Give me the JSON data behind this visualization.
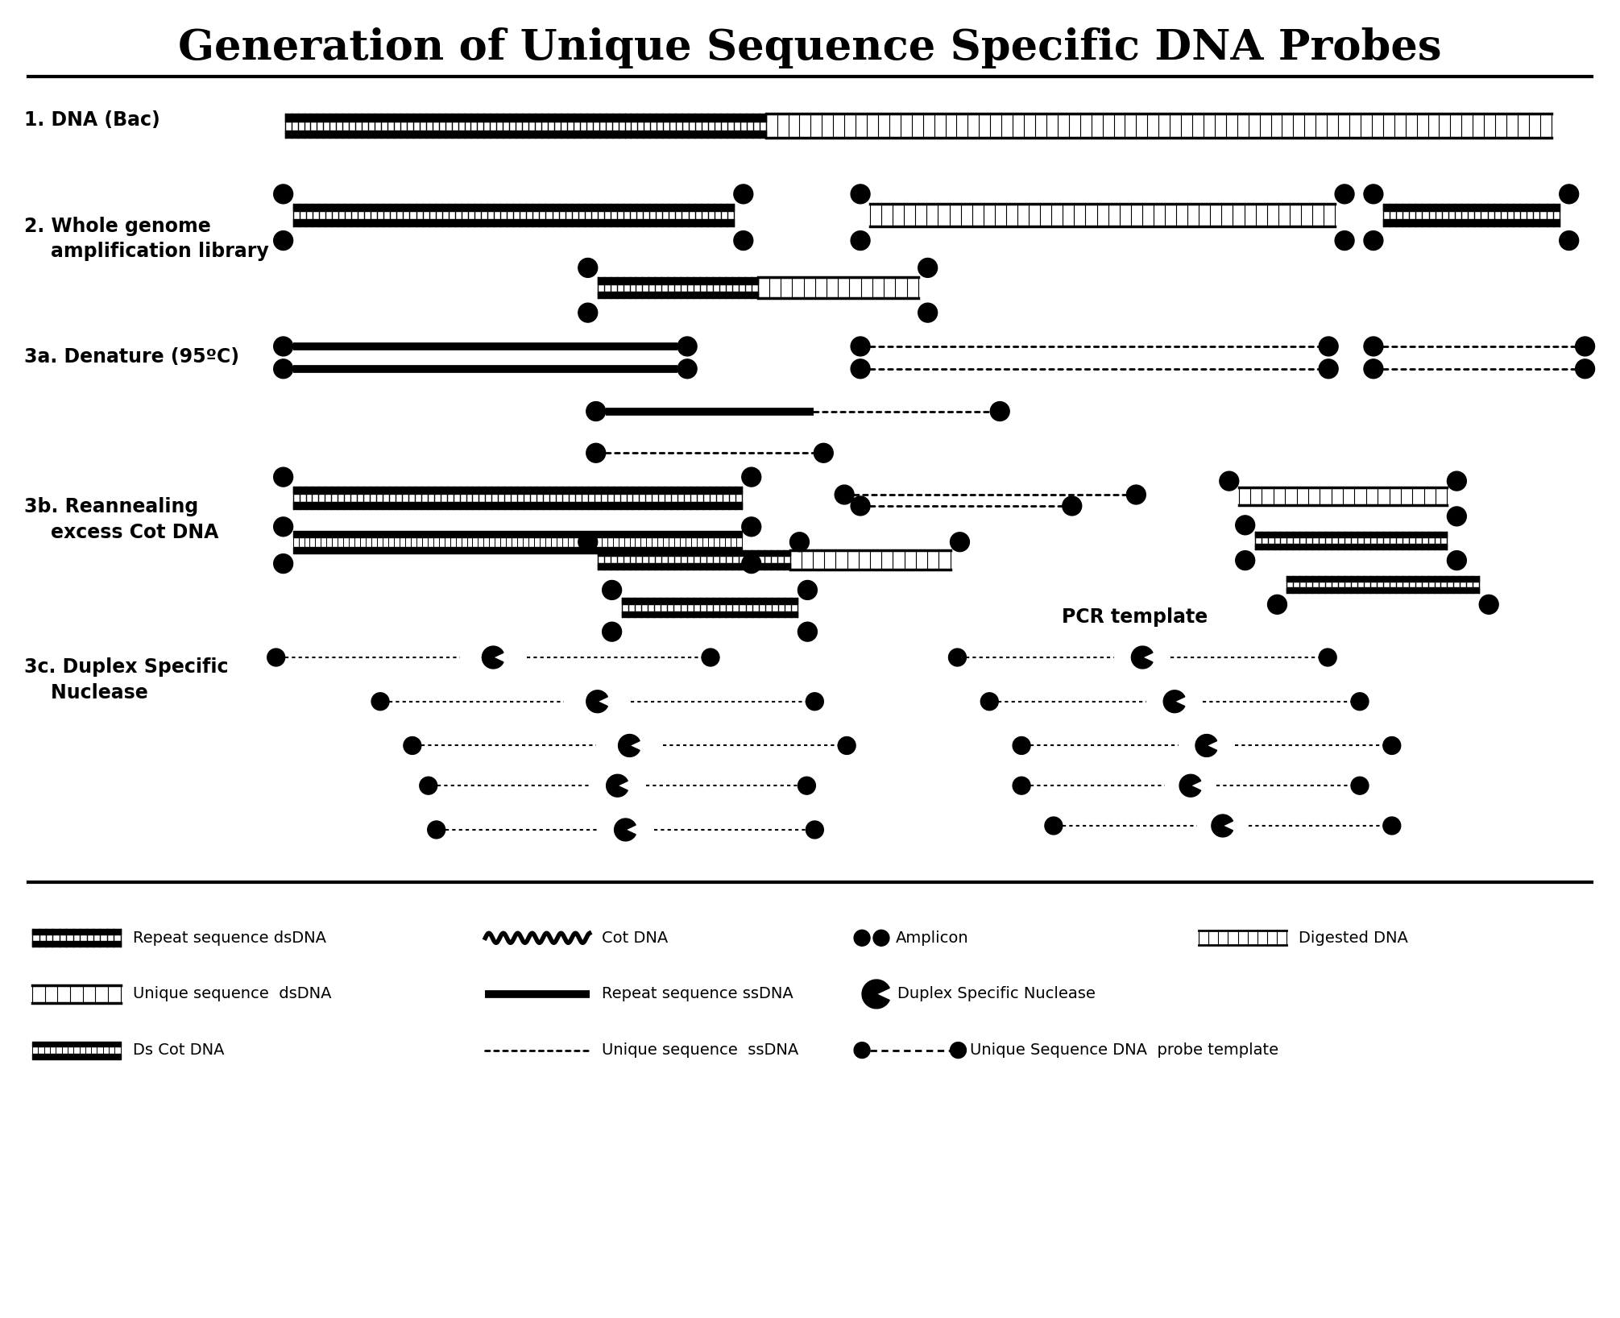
{
  "title": "Generation of Unique Sequence Specific DNA Probes",
  "title_fontsize": 38,
  "bg_color": "#ffffff",
  "line_color": "#000000",
  "labels": {
    "step1": "1. DNA (Bac)",
    "step2": "2. Whole genome\n    amplification library",
    "step3a": "3a. Denature (95ºC)",
    "step3b": "3b. Reannealing\n    excess Cot DNA",
    "step3c": "3c. Duplex Specific\n    Nuclease"
  }
}
